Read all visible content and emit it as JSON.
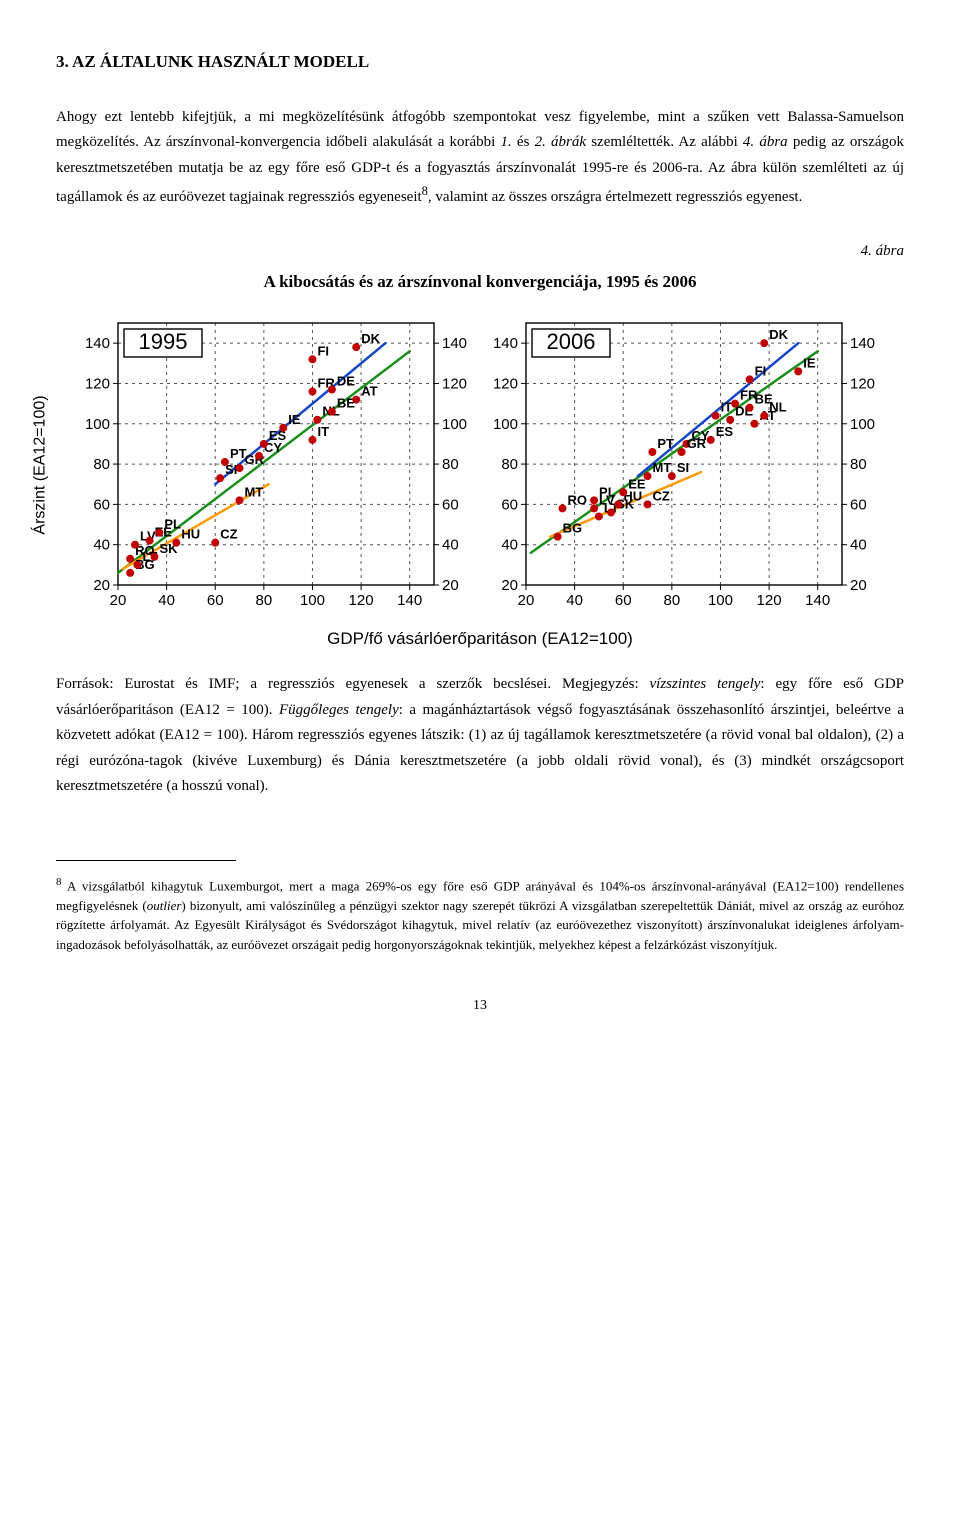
{
  "section_title": "3. AZ ÁLTALUNK HASZNÁLT MODELL",
  "para1_a": "Ahogy ezt lentebb kifejtjük, a mi megközelítésünk átfogóbb szempontokat vesz figyelembe, mint a szűken vett Balassa-Samuelson megközelítés. Az árszínvonal-konvergencia időbeli alakulását a korábbi ",
  "para1_i1": "1.",
  "para1_b": " és ",
  "para1_i2": "2. ábrák",
  "para1_c": " szemléltették. Az alábbi ",
  "para1_i3": "4. ábra",
  "para1_d": " pedig az országok keresztmetszetében mutatja be az egy főre eső GDP-t és a fogyasztás árszínvonalát 1995-re és 2006-ra. Az ábra külön szemlélteti az új tagállamok és az euróövezet tagjainak regressziós egyeneseit",
  "para1_sup": "8",
  "para1_e": ", valamint az összes országra értelmezett regressziós egyenest.",
  "fig_label": "4. ábra",
  "fig_title": "A kibocsátás és az árszínvonal konvergenciája, 1995 és 2006",
  "y_axis_label": "Árszint (EA12=100)",
  "x_axis_label": "GDP/fő vásárlóerőparitáson (EA12=100)",
  "caption_a": "Források: Eurostat és IMF; a regressziós egyenesek a szerzők becslései. Megjegyzés: ",
  "caption_i1": "vízszintes tengely",
  "caption_b": ": egy főre eső GDP vásárlóerőparitáson (EA12 = 100). ",
  "caption_i2": "Függőleges tengely",
  "caption_c": ": a magánháztartások végső fogyasztásának összehasonlító árszintjei, beleértve a közvetett adókat (EA12 = 100). Három regressziós egyenes látszik: (1) az új tagállamok keresztmetszetére (a rövid vonal bal oldalon), (2) a régi eurózóna-tagok (kivéve Luxemburg) és Dánia keresztmetszetére (a jobb oldali rövid vonal), és (3) mindkét országcsoport keresztmetszetére (a hosszú vonal).",
  "footnote_num": "8",
  "footnote_a": " A vizsgálatból kihagytuk Luxemburgot, mert a maga 269%-os egy főre eső GDP arányával és 104%-os árszínvonal-arányával (EA12=100) rendellenes megfigyelésnek (",
  "footnote_i": "outlier",
  "footnote_b": ") bizonyult, ami valószínűleg a pénzügyi szektor nagy szerepét tükrözi A vizsgálatban szerepeltettük Dániát, mivel az ország az euróhoz rögzítette árfolyamát. Az Egyesült Királyságot és Svédországot kihagytuk, mivel relatív (az euróövezethez viszonyított) árszínvonalukat ideiglenes árfolyam-ingadozások befolyásolhatták, az euróövezet országait pedig horgonyországoknak tekintjük, melyekhez képest a felzárkózást viszonyítjuk.",
  "page_number": "13",
  "chart": {
    "xlim": [
      20,
      150
    ],
    "ylim": [
      20,
      150
    ],
    "ticks": [
      20,
      40,
      60,
      80,
      100,
      120,
      140
    ],
    "grid_color": "#555555",
    "grid_dash": "3,4",
    "axis_color": "#000000",
    "point_color": "#c00000",
    "point_radius": 4,
    "line_all_color": "#1a8f1a",
    "line_new_color": "#ff9900",
    "line_old_color": "#1646c8",
    "line_width": 2.5,
    "box_fill": "#ffffff",
    "box_stroke": "#000000"
  },
  "panel_1995": {
    "title": "1995",
    "points": [
      {
        "code": "BG",
        "x": 25,
        "y": 26
      },
      {
        "code": "RO",
        "x": 25,
        "y": 33
      },
      {
        "code": "LT",
        "x": 28,
        "y": 30
      },
      {
        "code": "LV",
        "x": 27,
        "y": 40
      },
      {
        "code": "EE",
        "x": 33,
        "y": 42
      },
      {
        "code": "SK",
        "x": 35,
        "y": 34
      },
      {
        "code": "PL",
        "x": 37,
        "y": 46
      },
      {
        "code": "HU",
        "x": 44,
        "y": 41
      },
      {
        "code": "CZ",
        "x": 60,
        "y": 41
      },
      {
        "code": "SI",
        "x": 62,
        "y": 73
      },
      {
        "code": "MT",
        "x": 70,
        "y": 62
      },
      {
        "code": "PT",
        "x": 64,
        "y": 81
      },
      {
        "code": "GR",
        "x": 70,
        "y": 78
      },
      {
        "code": "CY",
        "x": 78,
        "y": 84
      },
      {
        "code": "ES",
        "x": 80,
        "y": 90
      },
      {
        "code": "IE",
        "x": 88,
        "y": 98
      },
      {
        "code": "IT",
        "x": 100,
        "y": 92
      },
      {
        "code": "NL",
        "x": 102,
        "y": 102
      },
      {
        "code": "BE",
        "x": 108,
        "y": 106
      },
      {
        "code": "FR",
        "x": 100,
        "y": 116
      },
      {
        "code": "DE",
        "x": 108,
        "y": 117
      },
      {
        "code": "AT",
        "x": 118,
        "y": 112
      },
      {
        "code": "FI",
        "x": 100,
        "y": 132
      },
      {
        "code": "DK",
        "x": 118,
        "y": 138
      }
    ],
    "line_all": {
      "x1": 20,
      "y1": 26,
      "x2": 140,
      "y2": 136
    },
    "line_new": {
      "x1": 22,
      "y1": 28,
      "x2": 82,
      "y2": 70
    },
    "line_old": {
      "x1": 60,
      "y1": 70,
      "x2": 130,
      "y2": 140
    }
  },
  "panel_2006": {
    "title": "2006",
    "points": [
      {
        "code": "BG",
        "x": 33,
        "y": 44
      },
      {
        "code": "RO",
        "x": 35,
        "y": 58
      },
      {
        "code": "LV",
        "x": 48,
        "y": 58
      },
      {
        "code": "LT",
        "x": 50,
        "y": 54
      },
      {
        "code": "SK",
        "x": 55,
        "y": 56
      },
      {
        "code": "PL",
        "x": 48,
        "y": 62
      },
      {
        "code": "HU",
        "x": 58,
        "y": 60
      },
      {
        "code": "EE",
        "x": 60,
        "y": 66
      },
      {
        "code": "CZ",
        "x": 70,
        "y": 60
      },
      {
        "code": "MT",
        "x": 70,
        "y": 74
      },
      {
        "code": "SI",
        "x": 80,
        "y": 74
      },
      {
        "code": "PT",
        "x": 72,
        "y": 86
      },
      {
        "code": "CY",
        "x": 86,
        "y": 90
      },
      {
        "code": "GR",
        "x": 84,
        "y": 86
      },
      {
        "code": "ES",
        "x": 96,
        "y": 92
      },
      {
        "code": "IT",
        "x": 98,
        "y": 104
      },
      {
        "code": "DE",
        "x": 104,
        "y": 102
      },
      {
        "code": "AT",
        "x": 114,
        "y": 100
      },
      {
        "code": "NL",
        "x": 118,
        "y": 104
      },
      {
        "code": "FR",
        "x": 106,
        "y": 110
      },
      {
        "code": "BE",
        "x": 112,
        "y": 108
      },
      {
        "code": "FI",
        "x": 112,
        "y": 122
      },
      {
        "code": "IE",
        "x": 132,
        "y": 126
      },
      {
        "code": "DK",
        "x": 118,
        "y": 140
      }
    ],
    "line_all": {
      "x1": 22,
      "y1": 36,
      "x2": 140,
      "y2": 136
    },
    "line_new": {
      "x1": 30,
      "y1": 44,
      "x2": 92,
      "y2": 76
    },
    "line_old": {
      "x1": 66,
      "y1": 74,
      "x2": 132,
      "y2": 140
    }
  }
}
